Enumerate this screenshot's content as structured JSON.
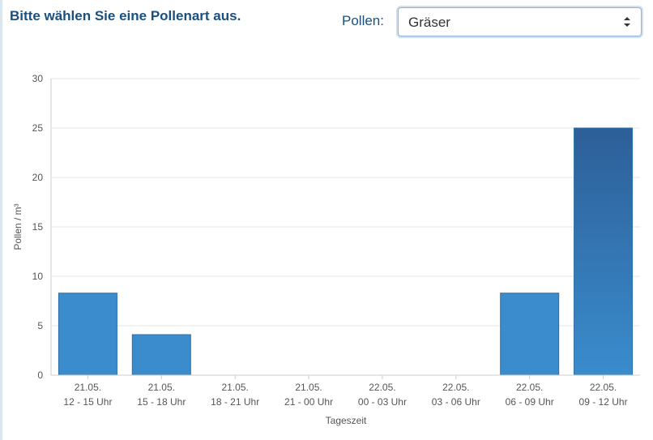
{
  "header": {
    "title": "Bitte wählen Sie eine Pollenart aus.",
    "select_label": "Pollen:",
    "select_value": "Gräser"
  },
  "colors": {
    "heading": "#1a4f7e",
    "bar": "#3a8ccd",
    "bar_highlight_top": "#2d5f98",
    "bar_highlight_bottom": "#3a8ccd"
  },
  "chart_data": {
    "type": "bar",
    "xlabel": "Tageszeit",
    "ylabel": "Pollen / m³",
    "ylim": [
      0,
      30
    ],
    "yticks": [
      0,
      5,
      10,
      15,
      20,
      25,
      30
    ],
    "grid": true,
    "categories": [
      [
        "21.05.",
        "12 - 15 Uhr"
      ],
      [
        "21.05.",
        "15 - 18 Uhr"
      ],
      [
        "21.05.",
        "18 - 21 Uhr"
      ],
      [
        "21.05.",
        "21 - 00 Uhr"
      ],
      [
        "22.05.",
        "00 - 03 Uhr"
      ],
      [
        "22.05.",
        "03 - 06 Uhr"
      ],
      [
        "22.05.",
        "06 - 09 Uhr"
      ],
      [
        "22.05.",
        "09 - 12 Uhr"
      ]
    ],
    "values": [
      8.3,
      4.1,
      0,
      0,
      0,
      0,
      8.3,
      25
    ],
    "highlighted_index": 7
  }
}
